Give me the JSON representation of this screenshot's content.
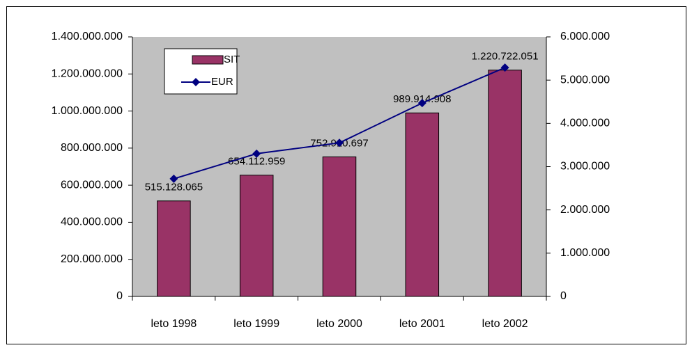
{
  "chart_data": {
    "type": "bar",
    "categories": [
      "leto 1998",
      "leto 1999",
      "leto 2000",
      "leto 2001",
      "leto 2002"
    ],
    "series": [
      {
        "name": "SIT",
        "type": "bar",
        "color": "#993366",
        "axis": "y",
        "values": [
          515128065,
          654112959,
          752910697,
          989914908,
          1220722051
        ],
        "value_labels": [
          "515.128.065",
          "654.112.959",
          "752.910.697",
          "989.914.908",
          "1.220.722.051"
        ]
      },
      {
        "name": "EUR",
        "type": "line",
        "color": "#000080",
        "axis": "y2",
        "values": [
          2720000,
          3300000,
          3550000,
          4470000,
          5290000
        ]
      }
    ],
    "ylim": [
      0,
      1400000000
    ],
    "yticks": [
      0,
      {
        "value": 200000000,
        "label": "200.000.000"
      },
      {
        "value": 400000000,
        "label": "400.000.000"
      },
      {
        "value": 600000000,
        "label": "600.000.000"
      },
      {
        "value": 800000000,
        "label": "800.000.000"
      },
      {
        "value": 1000000000,
        "label": "1.000.000.000"
      },
      {
        "value": 1200000000,
        "label": "1.200.000.000"
      },
      {
        "value": 1400000000,
        "label": "1.400.000.000"
      }
    ],
    "y2lim": [
      0,
      6000000
    ],
    "y2ticks": [
      0,
      {
        "value": 1000000,
        "label": "1.000.000"
      },
      {
        "value": 2000000,
        "label": "2.000.000"
      },
      {
        "value": 3000000,
        "label": "3.000.000"
      },
      {
        "value": 4000000,
        "label": "4.000.000"
      },
      {
        "value": 5000000,
        "label": "5.000.000"
      },
      {
        "value": 6000000,
        "label": "6.000.000"
      }
    ],
    "legend": "upper left",
    "plot_background": "#c0c0c0"
  }
}
